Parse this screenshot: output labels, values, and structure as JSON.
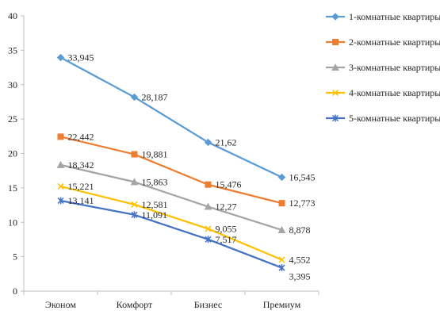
{
  "chart_data": {
    "type": "line",
    "title": "",
    "xlabel": "",
    "ylabel": "",
    "categories": [
      "Эконом",
      "Комфорт",
      "Бизнес",
      "Премиум"
    ],
    "ylim": [
      0,
      40
    ],
    "yticks": [
      0,
      5,
      10,
      15,
      20,
      25,
      30,
      35,
      40
    ],
    "grid": false,
    "legend_position": "right",
    "series": [
      {
        "name": "1-комнатные квартиры",
        "color": "#5b9bd5",
        "marker": "diamond",
        "values": [
          33.945,
          28.187,
          21.62,
          16.545
        ],
        "labels": [
          "33,945",
          "28,187",
          "21,62",
          "16,545"
        ]
      },
      {
        "name": "2-комнатные квартиры",
        "color": "#ed7d31",
        "marker": "square",
        "values": [
          22.442,
          19.881,
          15.476,
          12.773
        ],
        "labels": [
          "22,442",
          "19,881",
          "15,476",
          "12,773"
        ]
      },
      {
        "name": "3-комнатные квартиры",
        "color": "#a5a5a5",
        "marker": "triangle",
        "values": [
          18.342,
          15.863,
          12.27,
          8.878
        ],
        "labels": [
          "18,342",
          "15,863",
          "12,27",
          "8,878"
        ]
      },
      {
        "name": "4-комнатные квартиры",
        "color": "#ffc000",
        "marker": "x",
        "values": [
          15.221,
          12.581,
          9.055,
          4.552
        ],
        "labels": [
          "15,221",
          "12,581",
          "9,055",
          "4,552"
        ]
      },
      {
        "name": "5-комнатные квартиры",
        "color": "#4472c4",
        "marker": "star",
        "values": [
          13.141,
          11.091,
          7.517,
          3.395
        ],
        "labels": [
          "13,141",
          "11,091",
          "7,517",
          "3,395"
        ]
      }
    ]
  }
}
